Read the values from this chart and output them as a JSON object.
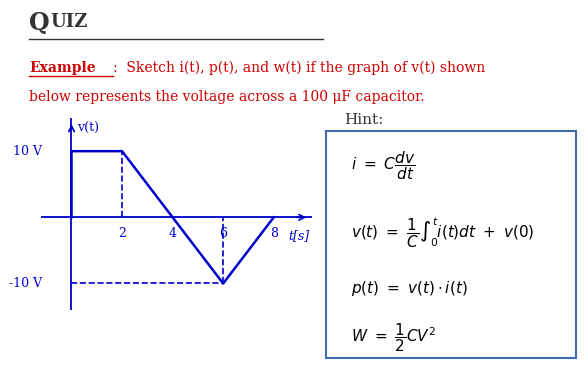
{
  "title_Q": "Q",
  "title_UIZ": "UIZ",
  "example_bold": "Example",
  "example_rest": ":  Sketch i(t), p(t), and w(t) if the graph of v(t) shown",
  "example_line2": "below represents the voltage across a 100 μF capacitor.",
  "hint_title": "Hint:",
  "hint_box_color": "#4169b0",
  "graph_color": "#0000cc",
  "red_color": "#cc0000",
  "bg_color": "#ffffff",
  "black": "#000000",
  "v_waveform_x": [
    0,
    0,
    2,
    4,
    6,
    8
  ],
  "v_waveform_y": [
    0,
    10,
    10,
    0,
    -10,
    0
  ],
  "xlabel_vals": [
    2,
    4,
    6,
    8
  ],
  "ylabel_pos_label": "10 V",
  "ylabel_neg_label": "-10 V",
  "vt_label": "v(t)",
  "ts_label": "t[s]",
  "eq1": "$i\\ =\\ C\\dfrac{dv}{dt}$",
  "eq2": "$v(t)\\ =\\ \\dfrac{1}{C}\\int_0^t i(t)dt\\ +\\ v(0)$",
  "eq3": "$p(t)\\ =\\ v(t)\\cdot i(t)$",
  "eq4": "$W\\ =\\ \\dfrac{1}{2}CV^2$"
}
